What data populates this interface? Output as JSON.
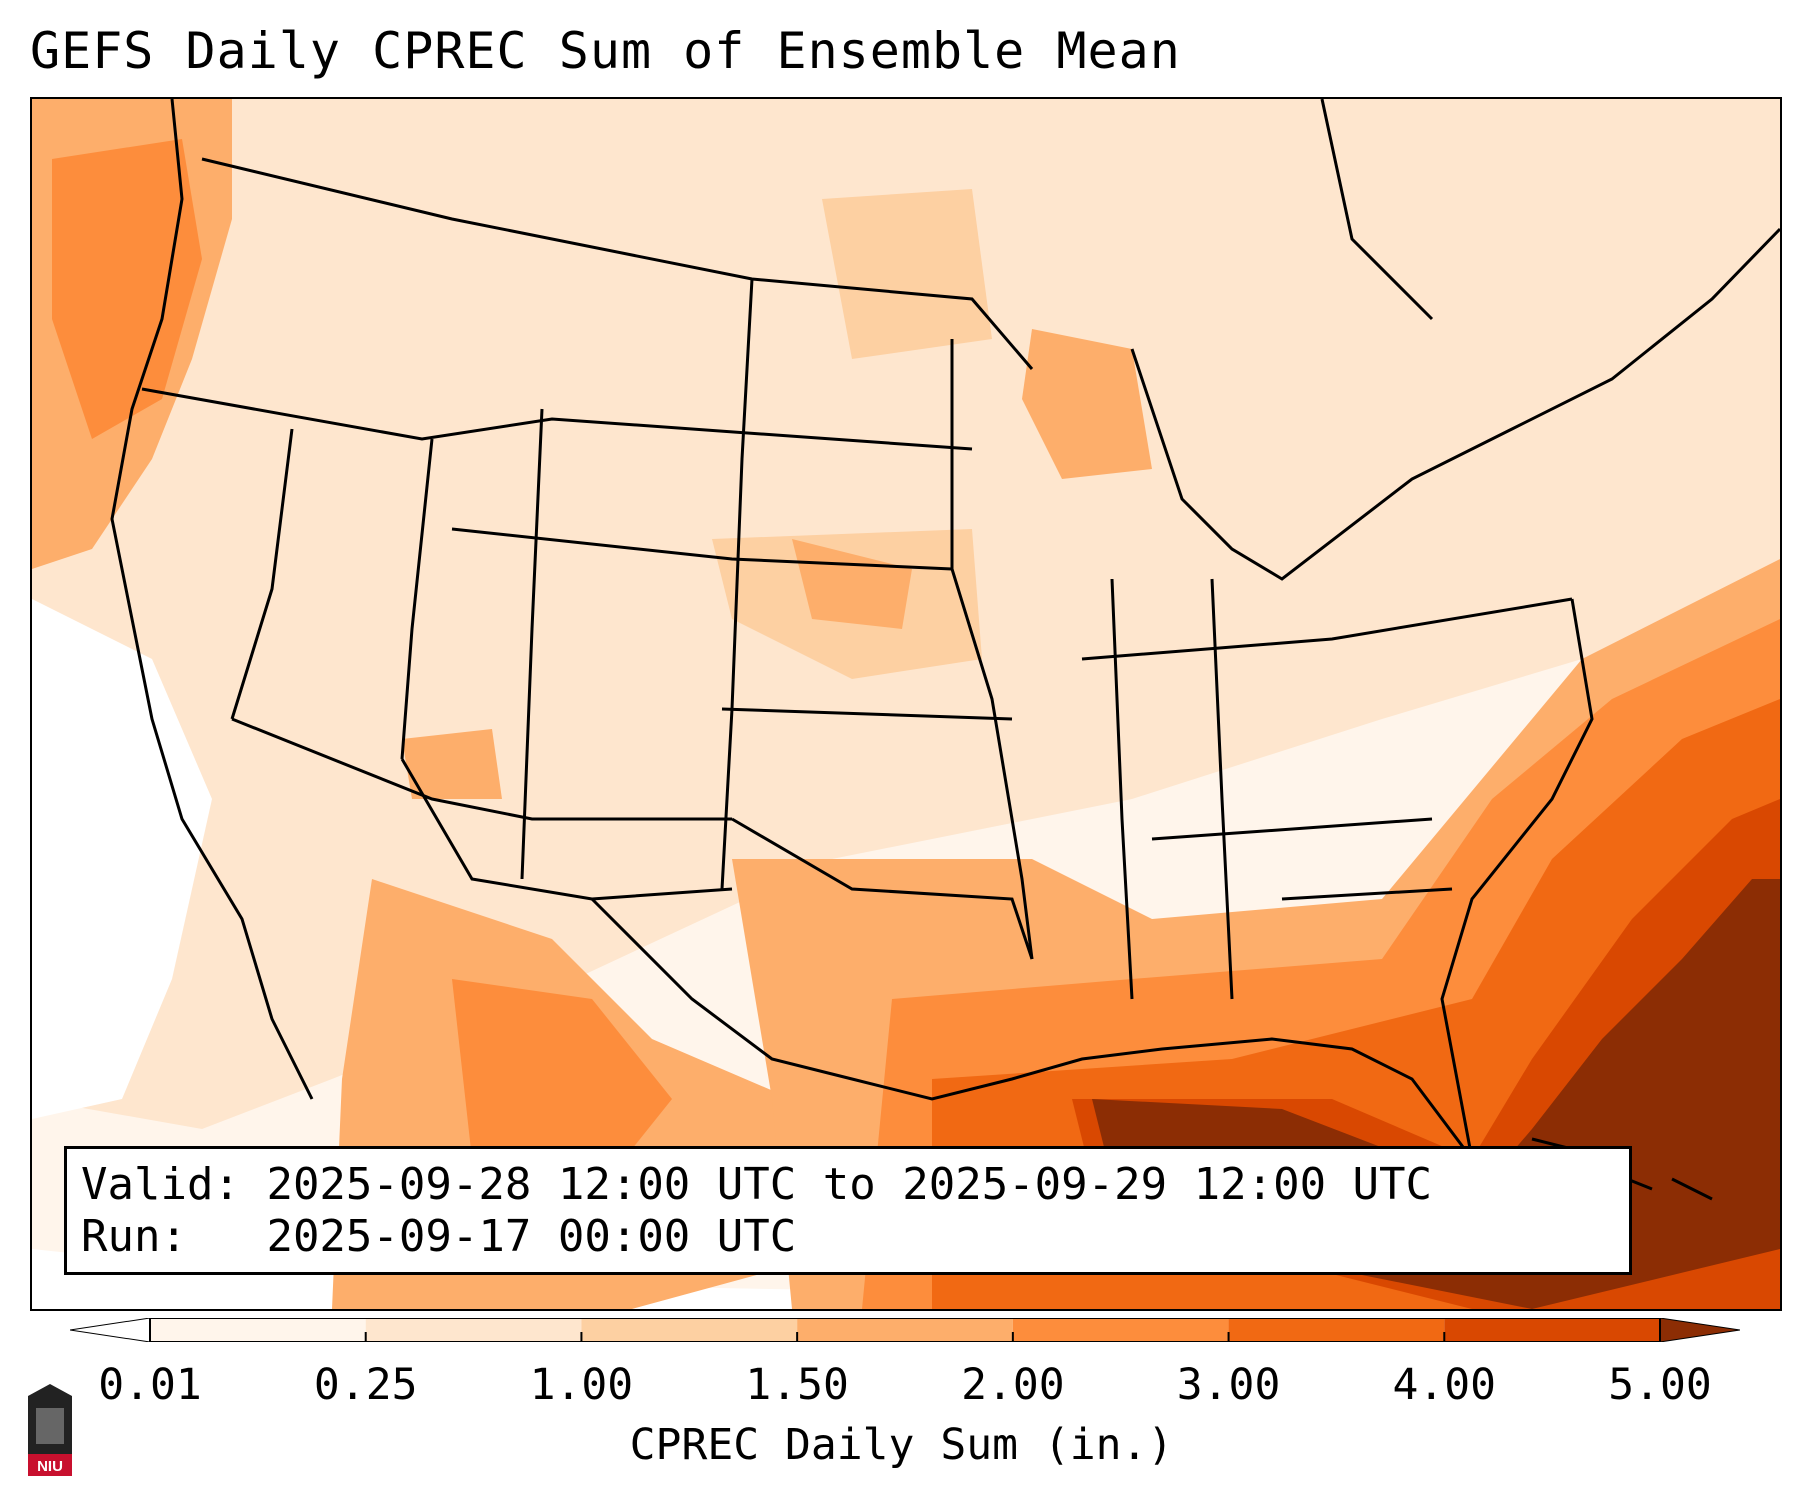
{
  "title": "GEFS Daily CPREC Sum of Ensemble Mean",
  "info": {
    "valid_label": "Valid:",
    "valid_value": "2025-09-28 12:00 UTC to 2025-09-29 12:00 UTC",
    "run_label": "Run:",
    "run_value": "2025-09-17 00:00 UTC"
  },
  "colorbar": {
    "label": "CPREC Daily Sum (in.)",
    "ticks": [
      "0.01",
      "0.25",
      "1.00",
      "1.50",
      "2.00",
      "3.00",
      "4.00",
      "5.00"
    ],
    "colors": [
      "#fff5eb",
      "#fee6ce",
      "#fdd0a2",
      "#fdae6b",
      "#fd8d3c",
      "#f16913",
      "#d94801",
      "#8c2d04"
    ]
  },
  "logo": {
    "text": "NIU",
    "color": "#c8102e"
  }
}
